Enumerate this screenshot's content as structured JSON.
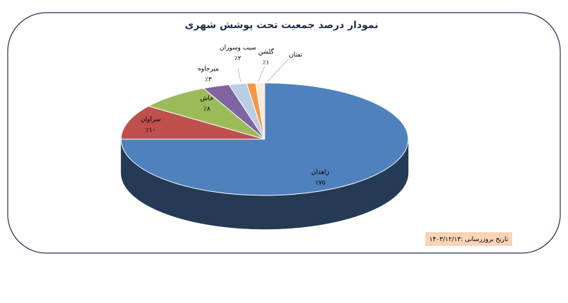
{
  "chart_data": {
    "type": "pie3d",
    "title": "نمودار درصد جمعیت تحت پوشش شهری",
    "categories": [
      "زاهدان",
      "سراوان",
      "خاش",
      "میرجاوه",
      "سیب وسوران",
      "گلشن",
      "تفتان"
    ],
    "values": [
      75,
      10,
      8,
      3,
      2,
      1,
      1
    ],
    "value_labels": [
      "٪۷۵",
      "٪۱۰",
      "٪۸",
      "٪۳",
      "٪۲",
      "٪۱",
      null
    ],
    "colors": [
      "#4f81bd",
      "#c0504d",
      "#9bbb59",
      "#8064a2",
      "#b9cde5",
      "#f79646",
      "#fdeada"
    ],
    "date_note": "تاریخ بروزرسانی :۱۴۰۳/۱۲/۱۳"
  }
}
